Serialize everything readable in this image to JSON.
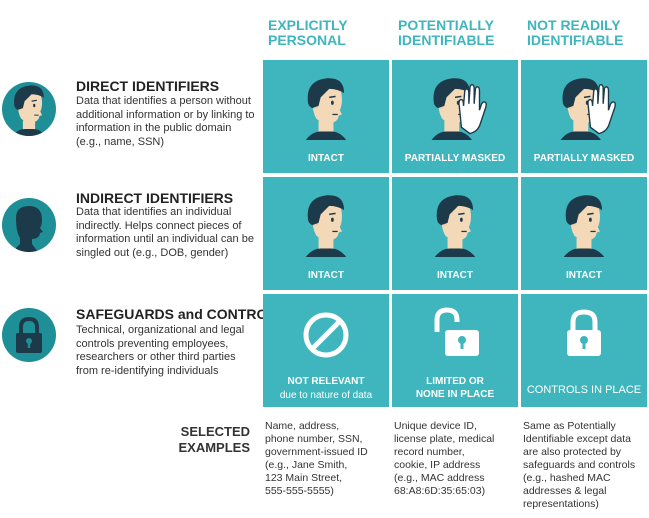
{
  "columns": [
    {
      "line1": "EXPLICITLY",
      "line2": "PERSONAL"
    },
    {
      "line1": "POTENTIALLY",
      "line2": "IDENTIFIABLE"
    },
    {
      "line1": "NOT READILY",
      "line2": "IDENTIFIABLE"
    }
  ],
  "rows": [
    {
      "title": "DIRECT IDENTIFIERS",
      "description": "Data that identifies a person without additional information or by linking to information in the public domain (e.g., name, SSN)",
      "cells": [
        "INTACT",
        "PARTIALLY MASKED",
        "PARTIALLY MASKED"
      ]
    },
    {
      "title": "INDIRECT IDENTIFIERS",
      "description": "Data that identifies an individual indirectly. Helps connect pieces of information until an individual can be singled out (e.g., DOB, gender)",
      "cells": [
        "INTACT",
        "INTACT",
        "INTACT"
      ]
    },
    {
      "title": "SAFEGUARDS and CONTROLS",
      "description": "Technical, organizational and legal controls preventing employees, researchers or other third parties from re-identifying individuals",
      "cells": [
        {
          "line1": "NOT RELEVANT",
          "line2": "due to nature of data"
        },
        {
          "line1": "LIMITED or",
          "line2": "NONE IN PLACE"
        },
        {
          "line1": "CONTROLS IN PLACE",
          "line2": ""
        }
      ]
    }
  ],
  "examples_label": {
    "line1": "SELECTED",
    "line2": "EXAMPLES"
  },
  "examples": [
    [
      "Name, address,",
      "phone number, SSN,",
      "government-issued ID",
      "(e.g., Jane Smith,",
      "123 Main Street,",
      "555-555-5555)"
    ],
    [
      "Unique device ID,",
      "license plate, medical",
      "record number,",
      "cookie, IP address",
      "(e.g., MAC address",
      "68:A8:6D:35:65:03)"
    ],
    [
      "Same as Potentially",
      "Identifiable except data",
      "are also protected by",
      "safeguards and controls",
      "(e.g., hashed MAC",
      "addresses & legal",
      "representations)"
    ]
  ],
  "colors": {
    "teal": "#3fb5bd",
    "dark_teal": "#1f8f97",
    "navy": "#1d3a4a"
  }
}
